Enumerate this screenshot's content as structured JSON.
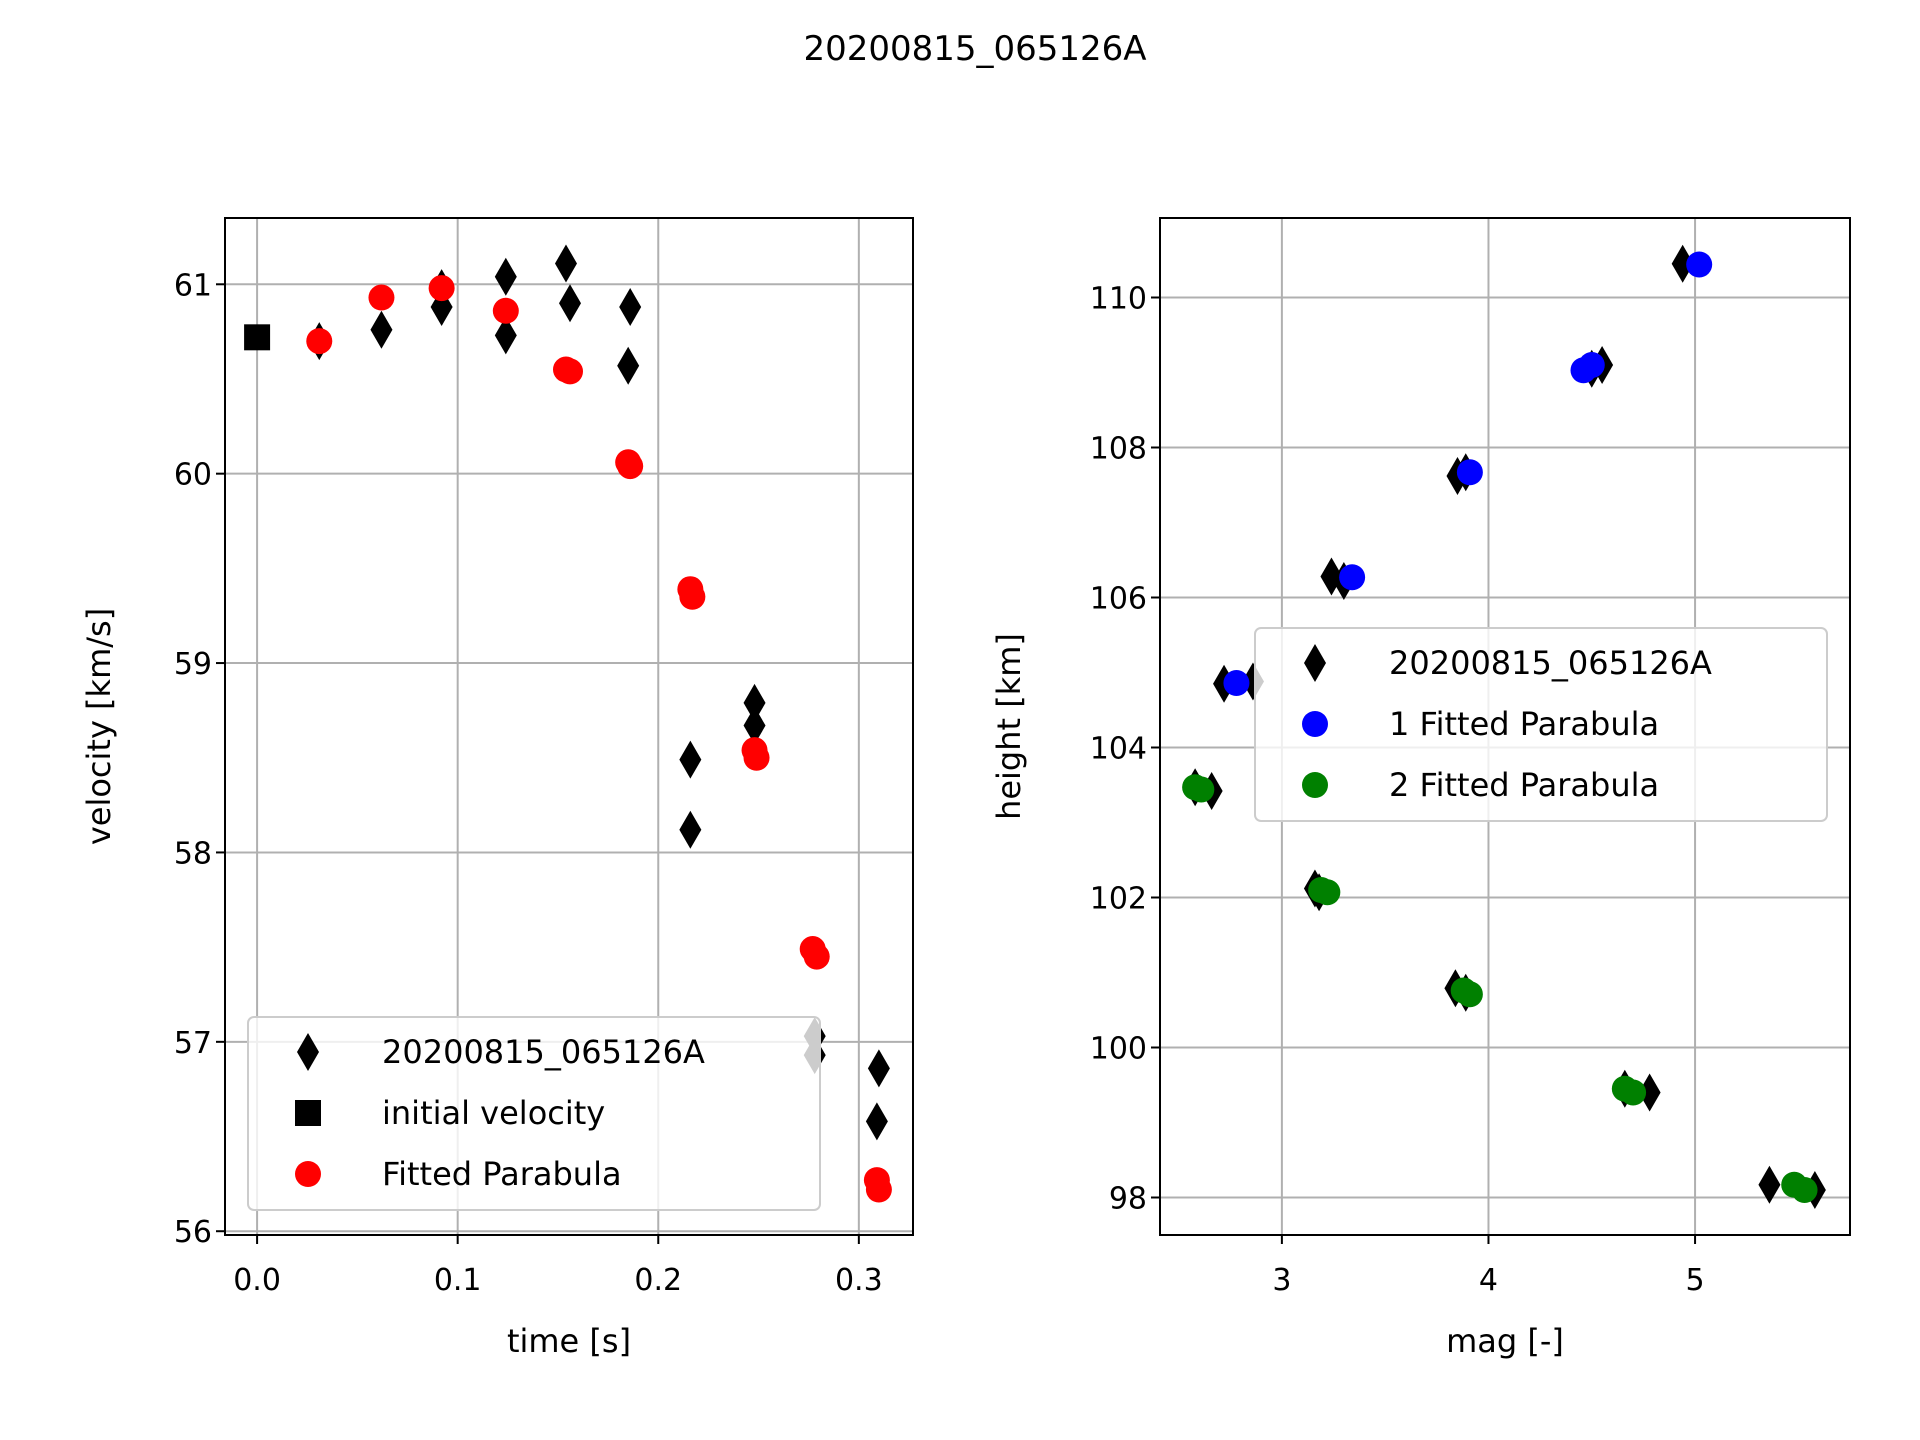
{
  "figure": {
    "suptitle": "20200815_065126A"
  },
  "chart_data": [
    {
      "type": "scatter",
      "title": "",
      "xlabel": "time [s]",
      "ylabel": "velocity [km/s]",
      "xlim": [
        -0.016,
        0.327
      ],
      "ylim": [
        55.98,
        61.35
      ],
      "xticks": [
        0.0,
        0.1,
        0.2,
        0.3
      ],
      "xtick_labels": [
        "0.0",
        "0.1",
        "0.2",
        "0.3"
      ],
      "yticks": [
        56,
        57,
        58,
        59,
        60,
        61
      ],
      "ytick_labels": [
        "56",
        "57",
        "58",
        "59",
        "60",
        "61"
      ],
      "grid": true,
      "legend_position": "lower-left",
      "series": [
        {
          "name": "20200815_065126A",
          "marker": "diamond",
          "color": "#000000",
          "points": [
            [
              0.031,
              60.7
            ],
            [
              0.062,
              60.76
            ],
            [
              0.092,
              60.88
            ],
            [
              0.092,
              60.98
            ],
            [
              0.124,
              61.04
            ],
            [
              0.124,
              60.73
            ],
            [
              0.154,
              61.11
            ],
            [
              0.156,
              60.9
            ],
            [
              0.186,
              60.88
            ],
            [
              0.185,
              60.57
            ],
            [
              0.216,
              58.49
            ],
            [
              0.216,
              58.12
            ],
            [
              0.248,
              58.79
            ],
            [
              0.248,
              58.67
            ],
            [
              0.278,
              57.03
            ],
            [
              0.278,
              56.93
            ],
            [
              0.31,
              56.86
            ],
            [
              0.309,
              56.58
            ]
          ]
        },
        {
          "name": "initial velocity",
          "marker": "square",
          "color": "#000000",
          "points": [
            [
              0.0,
              60.72
            ]
          ]
        },
        {
          "name": "Fitted Parabula",
          "marker": "circle",
          "color": "#ff0000",
          "points": [
            [
              0.031,
              60.7
            ],
            [
              0.062,
              60.93
            ],
            [
              0.092,
              60.98
            ],
            [
              0.124,
              60.86
            ],
            [
              0.154,
              60.55
            ],
            [
              0.156,
              60.54
            ],
            [
              0.185,
              60.06
            ],
            [
              0.186,
              60.04
            ],
            [
              0.216,
              59.39
            ],
            [
              0.217,
              59.35
            ],
            [
              0.248,
              58.54
            ],
            [
              0.249,
              58.5
            ],
            [
              0.277,
              57.49
            ],
            [
              0.279,
              57.45
            ],
            [
              0.309,
              56.27
            ],
            [
              0.31,
              56.22
            ]
          ]
        }
      ]
    },
    {
      "type": "scatter",
      "title": "",
      "xlabel": "mag [-]",
      "ylabel": "height [km]",
      "xlim": [
        2.41,
        5.75
      ],
      "ylim": [
        97.5,
        111.06
      ],
      "xticks": [
        3,
        4,
        5
      ],
      "xtick_labels": [
        "3",
        "4",
        "5"
      ],
      "yticks": [
        98,
        100,
        102,
        104,
        106,
        108,
        110
      ],
      "ytick_labels": [
        "98",
        "100",
        "102",
        "104",
        "106",
        "108",
        "110"
      ],
      "grid": true,
      "legend_position": "center-right",
      "series": [
        {
          "name": "20200815_065126A",
          "marker": "diamond",
          "color": "#000000",
          "points": [
            [
              4.94,
              110.45
            ],
            [
              4.55,
              109.1
            ],
            [
              4.5,
              109.05
            ],
            [
              3.89,
              107.67
            ],
            [
              3.85,
              107.62
            ],
            [
              3.24,
              106.28
            ],
            [
              3.3,
              106.22
            ],
            [
              2.72,
              104.85
            ],
            [
              2.86,
              104.88
            ],
            [
              2.58,
              103.47
            ],
            [
              2.66,
              103.42
            ],
            [
              3.16,
              102.12
            ],
            [
              3.18,
              102.07
            ],
            [
              3.84,
              100.79
            ],
            [
              3.89,
              100.73
            ],
            [
              4.66,
              99.45
            ],
            [
              4.78,
              99.4
            ],
            [
              5.36,
              98.17
            ],
            [
              5.58,
              98.1
            ]
          ]
        },
        {
          "name": "1 Fitted Parabula",
          "marker": "circle",
          "color": "#0000ff",
          "points": [
            [
              5.02,
              110.44
            ],
            [
              4.46,
              109.03
            ],
            [
              4.5,
              109.1
            ],
            [
              3.91,
              107.67
            ],
            [
              3.34,
              106.27
            ],
            [
              2.78,
              104.86
            ]
          ]
        },
        {
          "name": "2 Fitted Parabula",
          "marker": "circle",
          "color": "#008000",
          "points": [
            [
              2.58,
              103.47
            ],
            [
              2.61,
              103.44
            ],
            [
              3.19,
              102.1
            ],
            [
              3.22,
              102.07
            ],
            [
              3.88,
              100.76
            ],
            [
              3.91,
              100.71
            ],
            [
              4.66,
              99.45
            ],
            [
              4.7,
              99.4
            ],
            [
              5.48,
              98.17
            ],
            [
              5.53,
              98.1
            ]
          ]
        }
      ]
    }
  ]
}
